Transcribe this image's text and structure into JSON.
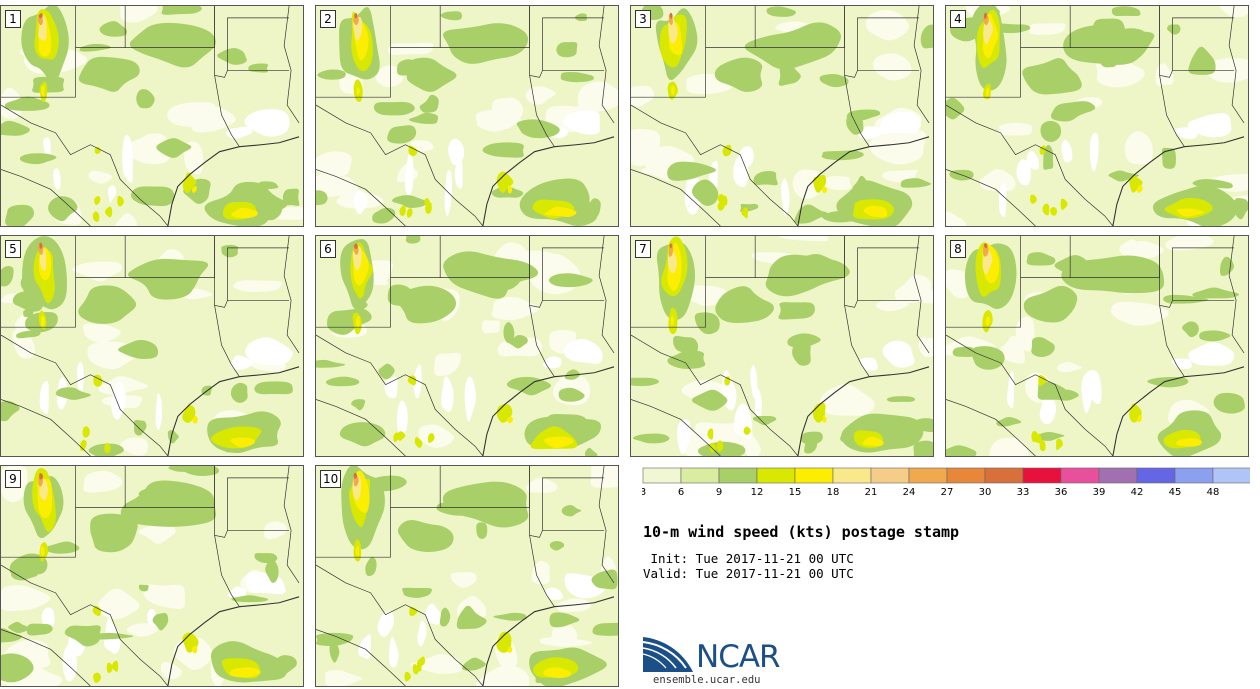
{
  "panels": [
    {
      "label": "1"
    },
    {
      "label": "2"
    },
    {
      "label": "3"
    },
    {
      "label": "4"
    },
    {
      "label": "5"
    },
    {
      "label": "6"
    },
    {
      "label": "7"
    },
    {
      "label": "8"
    },
    {
      "label": "9"
    },
    {
      "label": "10"
    }
  ],
  "colorbar": {
    "ticks": [
      "3",
      "6",
      "9",
      "12",
      "15",
      "18",
      "21",
      "24",
      "27",
      "30",
      "33",
      "36",
      "39",
      "42",
      "45",
      "48"
    ],
    "colors": [
      "#f0f7d2",
      "#d9eca0",
      "#a9d068",
      "#d8e800",
      "#fbee00",
      "#fae98a",
      "#f5cc88",
      "#f0a94e",
      "#e8873a",
      "#d8703c",
      "#e8103c",
      "#e8509c",
      "#a070b0",
      "#6466e6",
      "#8ca0f0",
      "#b0c4f8"
    ]
  },
  "map_colors": {
    "bg": "#eef6c8",
    "lowest": "#fbfcee",
    "white": "#ffffff",
    "medium": "#a9d068",
    "light": "#d9eca0",
    "yellow": "#fbee00",
    "lime": "#d8e800",
    "pale_yellow": "#fae98a",
    "orange": "#f0a94e",
    "dark_orange": "#d8703c",
    "border": "#333333"
  },
  "title": "10-m wind speed (kts) postage stamp",
  "init": " Init: Tue 2017-11-21 00 UTC",
  "valid": "Valid: Tue 2017-11-21 00 UTC",
  "logo_text": "NCAR",
  "url": "ensemble.ucar.edu"
}
